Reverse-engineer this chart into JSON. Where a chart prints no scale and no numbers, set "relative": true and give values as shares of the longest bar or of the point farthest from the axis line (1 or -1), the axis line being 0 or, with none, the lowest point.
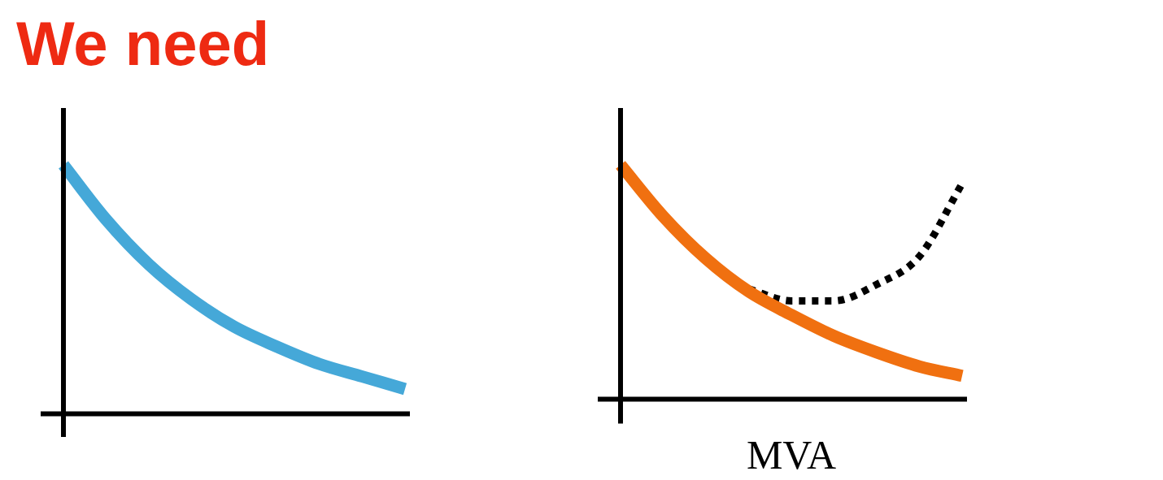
{
  "chart_data": [
    {
      "type": "line",
      "title": "We need",
      "relative": true,
      "categories": [
        null,
        null,
        null,
        null,
        null,
        null,
        null,
        null,
        null
      ],
      "series": [
        {
          "color": "#45a8d8",
          "values": [
            1,
            0.78,
            0.6,
            0.46,
            0.35,
            0.27,
            0.2,
            0.15,
            0.1
          ]
        }
      ]
    },
    {
      "type": "line",
      "xlabel": "MVA",
      "relative": true,
      "categories": [
        null,
        null,
        null,
        null,
        null,
        null,
        null,
        null,
        null
      ],
      "series": [
        {
          "color": "#f07010",
          "values": [
            1,
            0.78,
            0.6,
            0.46,
            0.36,
            0.27,
            0.2,
            0.14,
            0.1
          ]
        },
        {
          "color": "#000000",
          "line_style": "dotted",
          "values": [
            null,
            null,
            null,
            0.47,
            0.42,
            0.42,
            0.49,
            0.61,
            0.92
          ]
        }
      ]
    }
  ]
}
